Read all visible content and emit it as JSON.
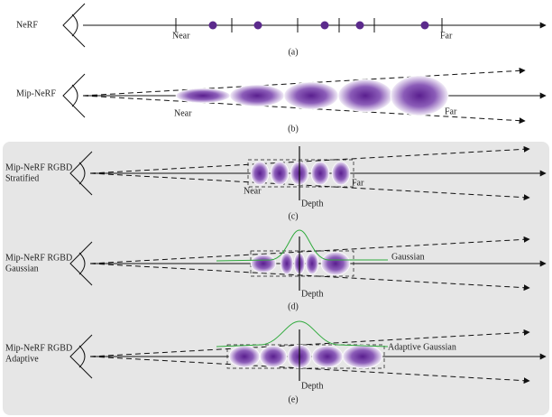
{
  "panels": [
    {
      "label": [
        "NeRF"
      ],
      "near": "Near",
      "far": "Far",
      "caption": "(a)"
    },
    {
      "label": [
        "Mip-NeRF"
      ],
      "near": "Near",
      "far": "Far",
      "caption": "(b)"
    },
    {
      "label": [
        "Mip-NeRF RGBD",
        "Stratified"
      ],
      "near": "Near",
      "far": "Far",
      "depth": "Depth",
      "caption": "(c)"
    },
    {
      "label": [
        "Mip-NeRF RGBD",
        "Gaussian"
      ],
      "curve": "Gaussian",
      "depth": "Depth",
      "caption": "(d)"
    },
    {
      "label": [
        "Mip-NeRF RGBD",
        "Adaptive"
      ],
      "curve": "Adaptive Gaussian",
      "depth": "Depth",
      "caption": "(e)"
    }
  ]
}
